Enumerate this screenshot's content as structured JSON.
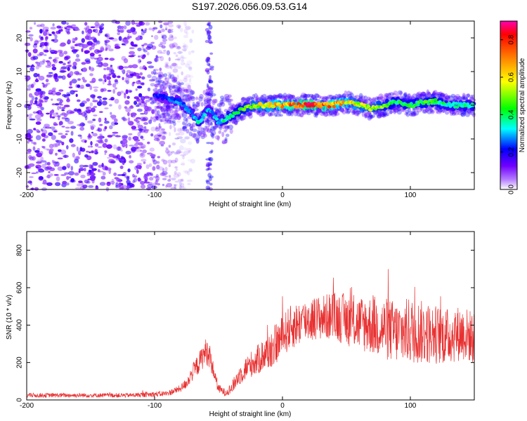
{
  "chart_data": [
    {
      "type": "heatmap",
      "title": "S197.2026.056.09.53.G14",
      "xlabel": "Height of straight line (km)",
      "ylabel": "Frequency (Hz)",
      "xlim": [
        -200,
        150
      ],
      "ylim": [
        -25,
        25
      ],
      "xticks": [
        -200,
        -100,
        0,
        100
      ],
      "xtick_labels": [
        "-200",
        "-100",
        "0",
        "100"
      ],
      "yticks": [
        20,
        10,
        0,
        -10,
        -20
      ],
      "ytick_labels": [
        "20",
        "10",
        "0",
        "-10",
        "-20"
      ],
      "colorbar": {
        "label": "Normalized spectral amplitude",
        "range": [
          0.0,
          0.9
        ],
        "ticks": [
          0.0,
          0.2,
          0.4,
          0.6,
          0.8
        ],
        "tick_labels": [
          "0.0",
          "0.2",
          "0.4",
          "0.6",
          "0.8"
        ]
      },
      "ridge": {
        "name": "dominant frequency track",
        "x": [
          -100,
          -90,
          -80,
          -72,
          -65,
          -58,
          -50,
          -45,
          -40,
          -30,
          -20,
          -10,
          0,
          10,
          20,
          30,
          40,
          50,
          60,
          70,
          80,
          90,
          100,
          110,
          120,
          130,
          140,
          150
        ],
        "y": [
          3,
          2,
          1,
          -2,
          -5,
          -1,
          -5,
          -4,
          -3,
          -1,
          0,
          0,
          0,
          0,
          0,
          0,
          0,
          1,
          0,
          -1,
          0,
          1,
          0,
          1,
          1,
          0,
          0,
          0
        ],
        "amplitude": [
          0.25,
          0.25,
          0.3,
          0.3,
          0.4,
          0.3,
          0.35,
          0.4,
          0.45,
          0.5,
          0.6,
          0.65,
          0.75,
          0.8,
          0.85,
          0.8,
          0.75,
          0.7,
          0.6,
          0.6,
          0.5,
          0.45,
          0.45,
          0.5,
          0.45,
          0.4,
          0.4,
          0.4
        ]
      },
      "noise_region": {
        "x_from": -200,
        "x_to": -95,
        "amplitude": 0.15
      }
    },
    {
      "type": "line",
      "xlabel": "Height of straight line (km)",
      "ylabel": "SNR (10 * v/v)",
      "xlim": [
        -200,
        150
      ],
      "ylim": [
        0,
        900
      ],
      "xticks": [
        -200,
        -100,
        0,
        100
      ],
      "xtick_labels": [
        "-200",
        "-100",
        "0",
        "100"
      ],
      "yticks": [
        0,
        200,
        400,
        600,
        800
      ],
      "ytick_labels": [
        "0",
        "200",
        "400",
        "600",
        "800"
      ],
      "series": [
        {
          "name": "SNR",
          "color": "#e83030",
          "x": [
            -200,
            -180,
            -160,
            -140,
            -120,
            -100,
            -90,
            -80,
            -75,
            -70,
            -65,
            -60,
            -57,
            -55,
            -50,
            -45,
            -40,
            -35,
            -30,
            -25,
            -20,
            -15,
            -10,
            -5,
            0,
            5,
            10,
            20,
            30,
            40,
            50,
            60,
            70,
            80,
            90,
            100,
            110,
            120,
            130,
            140,
            150
          ],
          "y": [
            25,
            25,
            25,
            25,
            25,
            30,
            35,
            60,
            90,
            150,
            200,
            260,
            240,
            180,
            60,
            40,
            60,
            120,
            160,
            190,
            210,
            240,
            260,
            300,
            340,
            380,
            400,
            430,
            440,
            450,
            430,
            410,
            400,
            380,
            360,
            370,
            360,
            350,
            340,
            360,
            330
          ],
          "spread": [
            12,
            12,
            12,
            12,
            12,
            15,
            15,
            20,
            30,
            45,
            60,
            70,
            70,
            50,
            25,
            20,
            30,
            50,
            60,
            70,
            80,
            90,
            100,
            110,
            110,
            120,
            120,
            120,
            120,
            130,
            140,
            150,
            160,
            170,
            170,
            180,
            170,
            160,
            150,
            150,
            140
          ]
        }
      ]
    }
  ]
}
